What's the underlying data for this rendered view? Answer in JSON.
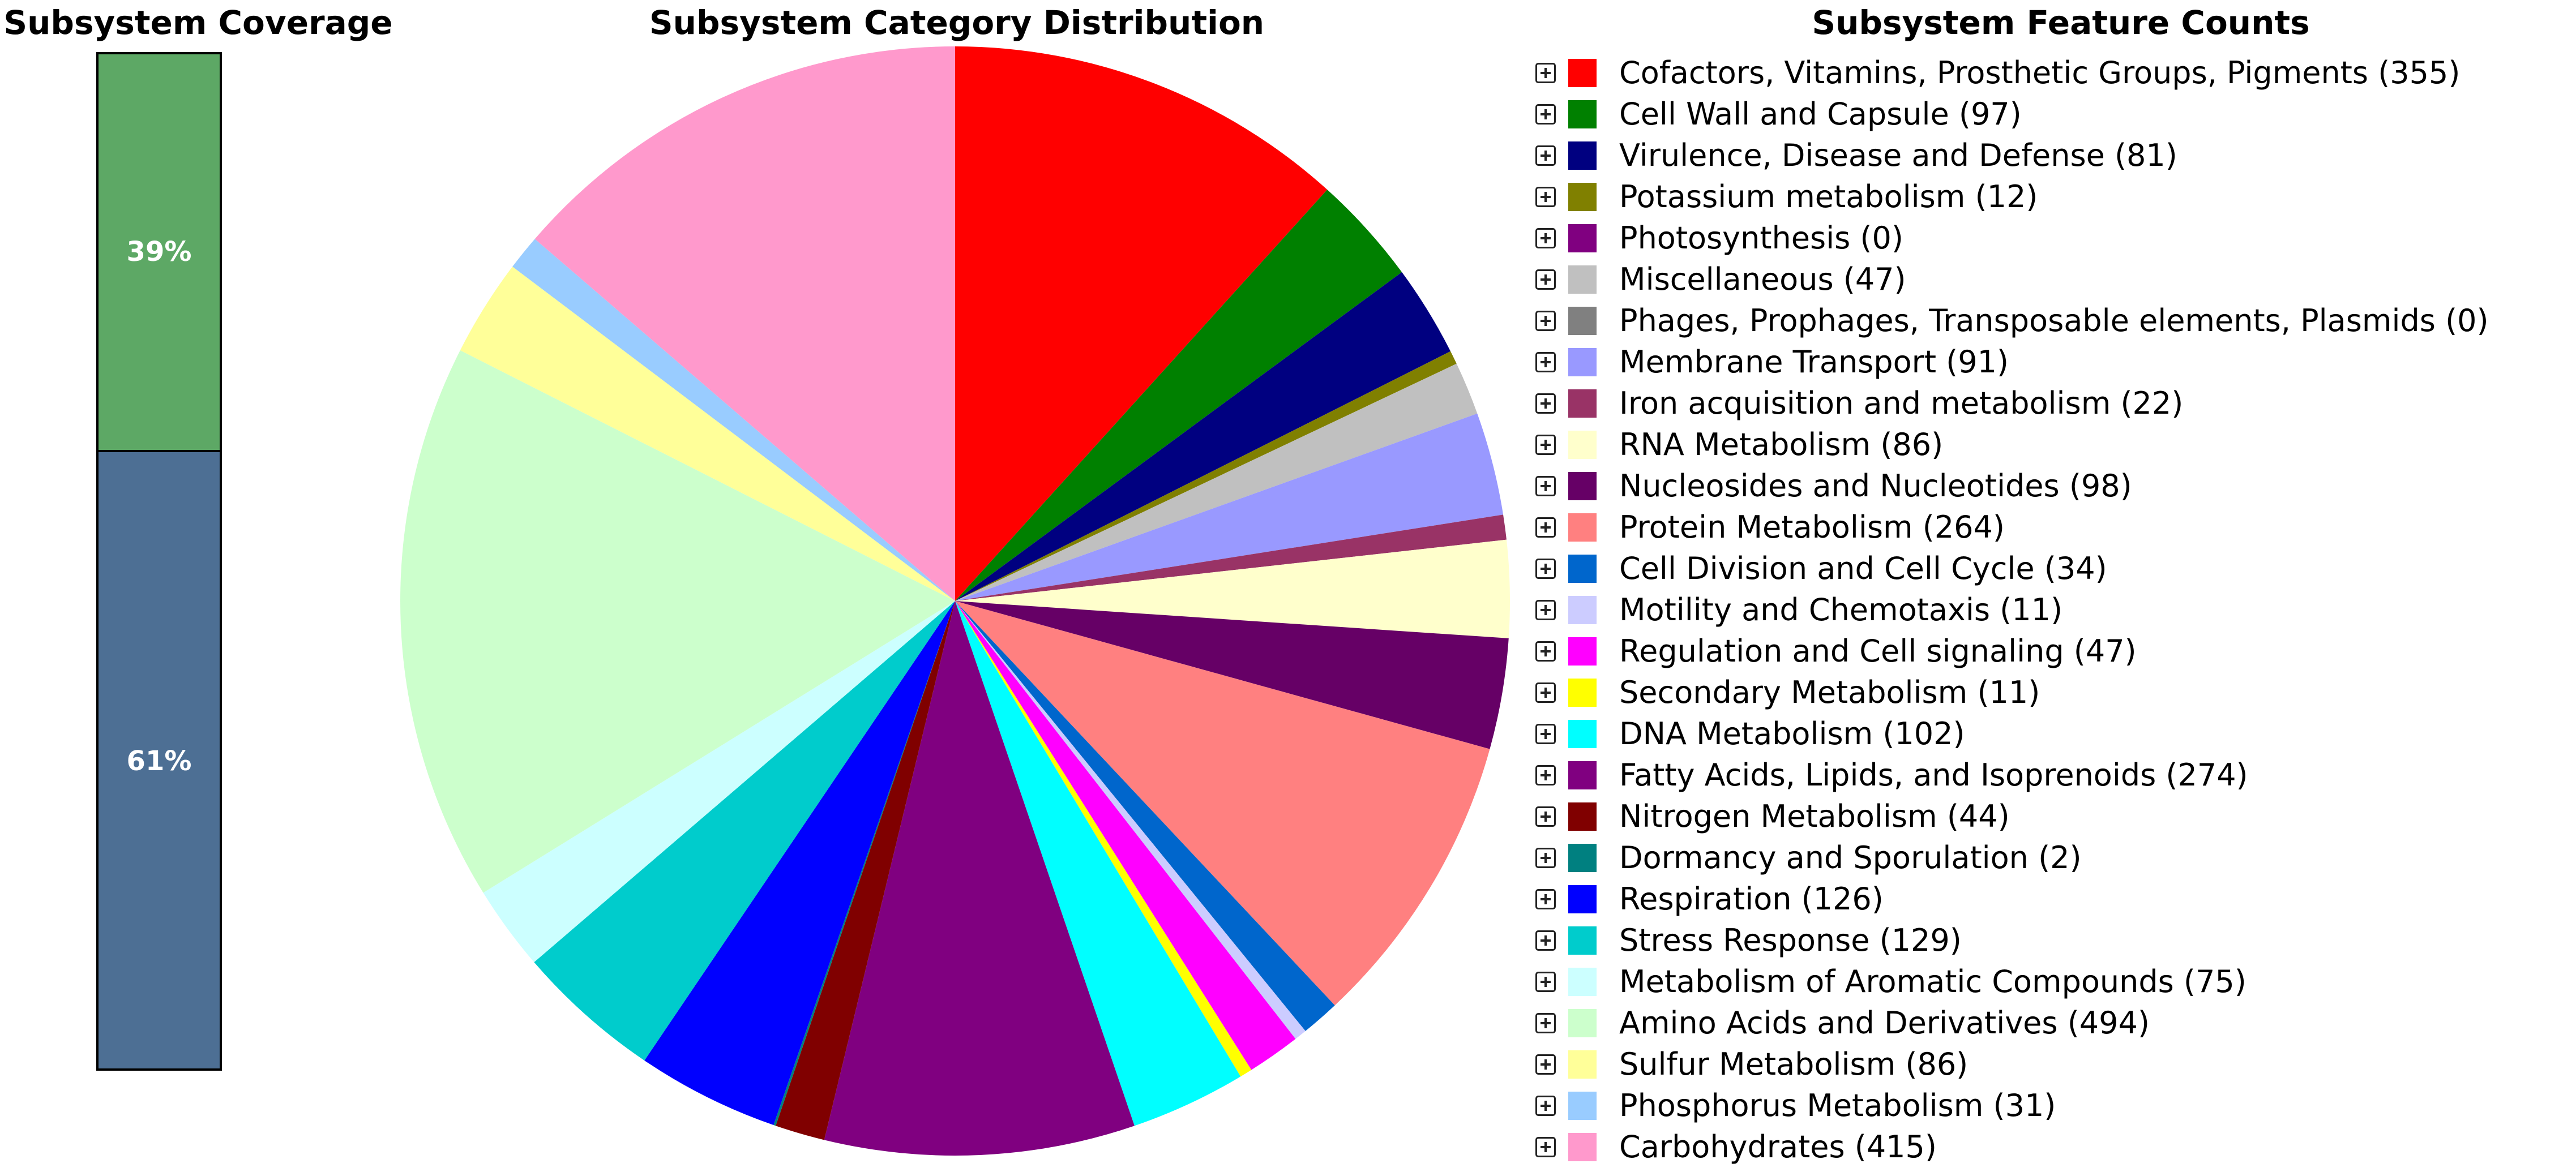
{
  "coverage": {
    "title": "Subsystem Coverage",
    "segments": [
      {
        "label": "39%",
        "value": 39,
        "color": "#5da865"
      },
      {
        "label": "61%",
        "value": 61,
        "color": "#4d6f94"
      }
    ]
  },
  "pie": {
    "title": "Subsystem Category Distribution"
  },
  "counts": {
    "title": "Subsystem Feature Counts"
  },
  "chart_data": {
    "type": "pie",
    "title": "Subsystem Category Distribution",
    "start_angle": "12 o'clock",
    "direction": "clockwise",
    "slices": [
      {
        "label": "Cofactors, Vitamins, Prosthetic Groups, Pigments (355)",
        "name": "Cofactors, Vitamins, Prosthetic Groups, Pigments",
        "value": 355,
        "color": "#ff0000"
      },
      {
        "label": "Cell Wall and Capsule (97)",
        "name": "Cell Wall and Capsule",
        "value": 97,
        "color": "#008000"
      },
      {
        "label": "Virulence, Disease and Defense (81)",
        "name": "Virulence, Disease and Defense",
        "value": 81,
        "color": "#000080"
      },
      {
        "label": "Potassium metabolism (12)",
        "name": "Potassium metabolism",
        "value": 12,
        "color": "#808000"
      },
      {
        "label": "Photosynthesis (0)",
        "name": "Photosynthesis",
        "value": 0,
        "color": "#800080"
      },
      {
        "label": "Miscellaneous (47)",
        "name": "Miscellaneous",
        "value": 47,
        "color": "#c0c0c0"
      },
      {
        "label": "Phages, Prophages, Transposable elements, Plasmids (0)",
        "name": "Phages, Prophages, Transposable elements, Plasmids",
        "value": 0,
        "color": "#808080"
      },
      {
        "label": "Membrane Transport (91)",
        "name": "Membrane Transport",
        "value": 91,
        "color": "#9999ff"
      },
      {
        "label": "Iron acquisition and metabolism (22)",
        "name": "Iron acquisition and metabolism",
        "value": 22,
        "color": "#993366"
      },
      {
        "label": "RNA Metabolism (86)",
        "name": "RNA Metabolism",
        "value": 86,
        "color": "#ffffcc"
      },
      {
        "label": "Nucleosides and Nucleotides (98)",
        "name": "Nucleosides and Nucleotides",
        "value": 98,
        "color": "#660066"
      },
      {
        "label": "Protein Metabolism (264)",
        "name": "Protein Metabolism",
        "value": 264,
        "color": "#ff8080"
      },
      {
        "label": "Cell Division and Cell Cycle (34)",
        "name": "Cell Division and Cell Cycle",
        "value": 34,
        "color": "#0066cc"
      },
      {
        "label": "Motility and Chemotaxis (11)",
        "name": "Motility and Chemotaxis",
        "value": 11,
        "color": "#ccccff"
      },
      {
        "label": "Regulation and Cell signaling (47)",
        "name": "Regulation and Cell signaling",
        "value": 47,
        "color": "#ff00ff"
      },
      {
        "label": "Secondary Metabolism (11)",
        "name": "Secondary Metabolism",
        "value": 11,
        "color": "#ffff00"
      },
      {
        "label": "DNA Metabolism (102)",
        "name": "DNA Metabolism",
        "value": 102,
        "color": "#00ffff"
      },
      {
        "label": "Fatty Acids, Lipids, and Isoprenoids (274)",
        "name": "Fatty Acids, Lipids, and Isoprenoids",
        "value": 274,
        "color": "#800080"
      },
      {
        "label": "Nitrogen Metabolism (44)",
        "name": "Nitrogen Metabolism",
        "value": 44,
        "color": "#800000"
      },
      {
        "label": "Dormancy and Sporulation (2)",
        "name": "Dormancy and Sporulation",
        "value": 2,
        "color": "#008080"
      },
      {
        "label": "Respiration (126)",
        "name": "Respiration",
        "value": 126,
        "color": "#0000ff"
      },
      {
        "label": "Stress Response (129)",
        "name": "Stress Response",
        "value": 129,
        "color": "#00cccc"
      },
      {
        "label": "Metabolism of Aromatic Compounds (75)",
        "name": "Metabolism of Aromatic Compounds",
        "value": 75,
        "color": "#ccffff"
      },
      {
        "label": "Amino Acids and Derivatives (494)",
        "name": "Amino Acids and Derivatives",
        "value": 494,
        "color": "#ccffcc"
      },
      {
        "label": "Sulfur Metabolism (86)",
        "name": "Sulfur Metabolism",
        "value": 86,
        "color": "#ffff99"
      },
      {
        "label": "Phosphorus Metabolism (31)",
        "name": "Phosphorus Metabolism",
        "value": 31,
        "color": "#99ccff"
      },
      {
        "label": "Carbohydrates (415)",
        "name": "Carbohydrates",
        "value": 415,
        "color": "#ff99cc"
      }
    ]
  }
}
